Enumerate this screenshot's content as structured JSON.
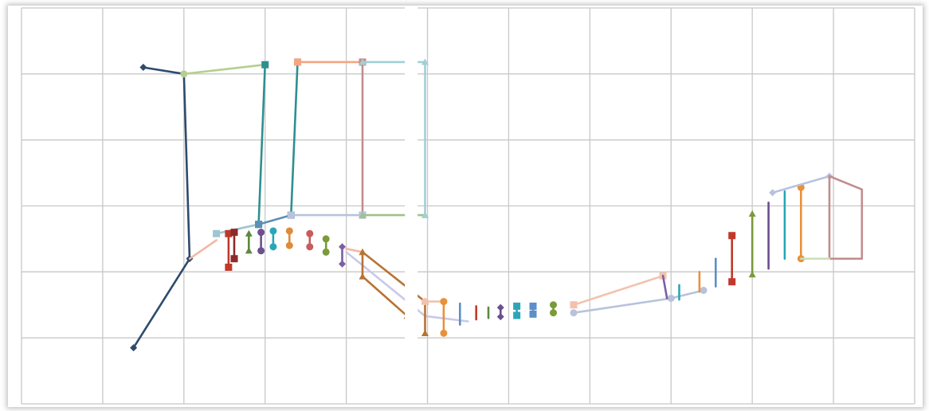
{
  "chart_data": {
    "type": "line",
    "title": "",
    "xlabel": "",
    "ylabel": "",
    "grid": true,
    "legend": "none",
    "xlim": [
      0,
      11
    ],
    "ylim": [
      -1,
      5
    ],
    "gap_x": 4.8,
    "series": [
      {
        "color": "#2e4a6e",
        "marker": "diamond",
        "points": [
          [
            1.5,
            4.1
          ],
          [
            2.0,
            4.0
          ],
          [
            2.07,
            1.2
          ],
          [
            1.38,
            -0.15
          ]
        ]
      },
      {
        "color": "#f2b8a2",
        "marker": "none",
        "points": [
          [
            2.07,
            1.2
          ],
          [
            2.4,
            1.48
          ]
        ]
      },
      {
        "color": "#b5cf8e",
        "marker": "circle",
        "points": [
          [
            2.0,
            4.0
          ],
          [
            3.0,
            4.14
          ]
        ]
      },
      {
        "color": "#2f8f8f",
        "marker": "square",
        "points": [
          [
            3.0,
            4.14
          ],
          [
            2.92,
            1.72
          ]
        ]
      },
      {
        "color": "#9ec5d4",
        "marker": "square",
        "points": [
          [
            2.92,
            1.72
          ],
          [
            2.4,
            1.58
          ]
        ]
      },
      {
        "color": "#2f8f8f",
        "marker": "square",
        "points": [
          [
            3.4,
            4.18
          ],
          [
            3.32,
            1.86
          ]
        ]
      },
      {
        "color": "#5b8fb5",
        "marker": "square",
        "points": [
          [
            2.92,
            1.72
          ],
          [
            3.32,
            1.86
          ]
        ]
      },
      {
        "color": "#f4a582",
        "marker": "square",
        "points": [
          [
            3.4,
            4.18
          ],
          [
            4.2,
            4.18
          ]
        ]
      },
      {
        "color": "#c28d8d",
        "marker": "square",
        "points": [
          [
            4.2,
            4.18
          ],
          [
            4.2,
            1.86
          ]
        ]
      },
      {
        "color": "#b8c2dd",
        "marker": "square",
        "points": [
          [
            3.32,
            1.86
          ],
          [
            4.2,
            1.86
          ]
        ]
      },
      {
        "color": "#9dc38b",
        "marker": "triangle",
        "points": [
          [
            4.2,
            1.86
          ],
          [
            4.97,
            1.86
          ]
        ]
      },
      {
        "color": "#a3cfd5",
        "marker": "triangle",
        "points": [
          [
            4.2,
            4.18
          ],
          [
            4.97,
            4.18
          ],
          [
            4.97,
            1.86
          ]
        ]
      },
      {
        "color": "#c0392b",
        "marker": "square",
        "points": [
          [
            2.55,
            1.58
          ],
          [
            2.55,
            1.07
          ]
        ]
      },
      {
        "color": "#8b2a2a",
        "marker": "square",
        "points": [
          [
            2.62,
            1.6
          ],
          [
            2.62,
            1.2
          ]
        ]
      },
      {
        "color": "#5c8a3a",
        "marker": "triangle",
        "points": [
          [
            2.8,
            1.58
          ],
          [
            2.8,
            1.32
          ]
        ]
      },
      {
        "color": "#6b4f8f",
        "marker": "circle",
        "points": [
          [
            2.95,
            1.6
          ],
          [
            2.95,
            1.32
          ]
        ]
      },
      {
        "color": "#2aa6b8",
        "marker": "circle",
        "points": [
          [
            3.1,
            1.62
          ],
          [
            3.1,
            1.38
          ]
        ]
      },
      {
        "color": "#e08a3b",
        "marker": "circle",
        "points": [
          [
            3.3,
            1.62
          ],
          [
            3.3,
            1.4
          ]
        ]
      },
      {
        "color": "#c75c5c",
        "marker": "circle",
        "points": [
          [
            3.55,
            1.58
          ],
          [
            3.55,
            1.38
          ]
        ]
      },
      {
        "color": "#7b9a3a",
        "marker": "circle",
        "points": [
          [
            3.75,
            1.5
          ],
          [
            3.75,
            1.3
          ]
        ]
      },
      {
        "color": "#7c5ea5",
        "marker": "diamond",
        "points": [
          [
            3.95,
            1.38
          ],
          [
            3.95,
            1.12
          ]
        ]
      },
      {
        "color": "#c9c9e8",
        "marker": "none",
        "points": [
          [
            4.0,
            1.3
          ],
          [
            4.2,
            1.1
          ],
          [
            4.97,
            0.33
          ],
          [
            5.5,
            0.25
          ]
        ]
      },
      {
        "color": "#f2b8a2",
        "marker": "none",
        "points": [
          [
            4.0,
            1.35
          ],
          [
            4.2,
            1.3
          ]
        ]
      },
      {
        "color": "#b87333",
        "marker": "triangle",
        "points": [
          [
            4.2,
            1.3
          ],
          [
            4.2,
            0.93
          ],
          [
            4.75,
            0.33
          ]
        ]
      },
      {
        "color": "#b87333",
        "marker": "triangle",
        "points": [
          [
            4.2,
            1.3
          ],
          [
            4.97,
            0.55
          ],
          [
            4.97,
            0.07
          ]
        ]
      },
      {
        "color": "#f2c2ae",
        "marker": "circle",
        "points": [
          [
            4.97,
            0.55
          ],
          [
            5.2,
            0.55
          ]
        ]
      },
      {
        "color": "#e8913b",
        "marker": "circle",
        "points": [
          [
            5.2,
            0.55
          ],
          [
            5.2,
            0.07
          ]
        ]
      },
      {
        "color": "#5d8fc9",
        "marker": "none",
        "points": [
          [
            5.4,
            0.52
          ],
          [
            5.4,
            0.2
          ]
        ]
      },
      {
        "color": "#c0392b",
        "marker": "none",
        "points": [
          [
            5.6,
            0.48
          ],
          [
            5.6,
            0.28
          ]
        ]
      },
      {
        "color": "#5c8a3a",
        "marker": "none",
        "points": [
          [
            5.75,
            0.46
          ],
          [
            5.75,
            0.3
          ]
        ]
      },
      {
        "color": "#6b4f8f",
        "marker": "diamond",
        "points": [
          [
            5.9,
            0.46
          ],
          [
            5.9,
            0.32
          ]
        ]
      },
      {
        "color": "#2aa6b8",
        "marker": "square",
        "points": [
          [
            6.1,
            0.48
          ],
          [
            6.1,
            0.34
          ]
        ]
      },
      {
        "color": "#5d8fc9",
        "marker": "square",
        "points": [
          [
            6.3,
            0.48
          ],
          [
            6.3,
            0.36
          ]
        ]
      },
      {
        "color": "#7b9a3a",
        "marker": "circle",
        "points": [
          [
            6.55,
            0.5
          ],
          [
            6.55,
            0.38
          ]
        ]
      },
      {
        "color": "#b8c2dd",
        "marker": "circle",
        "points": [
          [
            6.8,
            0.38
          ],
          [
            8.0,
            0.6
          ],
          [
            8.4,
            0.72
          ]
        ]
      },
      {
        "color": "#f2c2ae",
        "marker": "square",
        "points": [
          [
            6.8,
            0.5
          ],
          [
            7.9,
            0.94
          ]
        ]
      },
      {
        "color": "#7c5ea5",
        "marker": "none",
        "points": [
          [
            7.9,
            0.94
          ],
          [
            7.95,
            0.6
          ]
        ]
      },
      {
        "color": "#2aa6b8",
        "marker": "none",
        "points": [
          [
            8.1,
            0.8
          ],
          [
            8.1,
            0.58
          ]
        ]
      },
      {
        "color": "#e8913b",
        "marker": "none",
        "points": [
          [
            8.35,
            1.0
          ],
          [
            8.35,
            0.7
          ]
        ]
      },
      {
        "color": "#5d8fc9",
        "marker": "none",
        "points": [
          [
            8.55,
            1.2
          ],
          [
            8.55,
            0.78
          ]
        ]
      },
      {
        "color": "#c0392b",
        "marker": "square",
        "points": [
          [
            8.75,
            1.55
          ],
          [
            8.75,
            0.85
          ]
        ]
      },
      {
        "color": "#7b9a3a",
        "marker": "triangle",
        "points": [
          [
            9.0,
            1.88
          ],
          [
            9.0,
            0.96
          ]
        ]
      },
      {
        "color": "#6b4f8f",
        "marker": "none",
        "points": [
          [
            9.2,
            2.05
          ],
          [
            9.2,
            1.05
          ]
        ]
      },
      {
        "color": "#2aa6b8",
        "marker": "none",
        "points": [
          [
            9.4,
            2.22
          ],
          [
            9.4,
            1.2
          ]
        ]
      },
      {
        "color": "#e8913b",
        "marker": "circle",
        "points": [
          [
            9.6,
            2.28
          ],
          [
            9.6,
            1.2
          ]
        ]
      },
      {
        "color": "#b8c2dd",
        "marker": "diamond",
        "points": [
          [
            9.25,
            2.2
          ],
          [
            9.95,
            2.45
          ]
        ]
      },
      {
        "color": "#c28d8d",
        "marker": "none",
        "points": [
          [
            9.95,
            2.45
          ],
          [
            10.35,
            2.25
          ],
          [
            10.35,
            1.2
          ],
          [
            9.95,
            1.2
          ],
          [
            9.95,
            2.45
          ]
        ]
      },
      {
        "color": "#c9e0b8",
        "marker": "none",
        "points": [
          [
            9.6,
            1.2
          ],
          [
            9.95,
            1.2
          ]
        ]
      }
    ]
  }
}
